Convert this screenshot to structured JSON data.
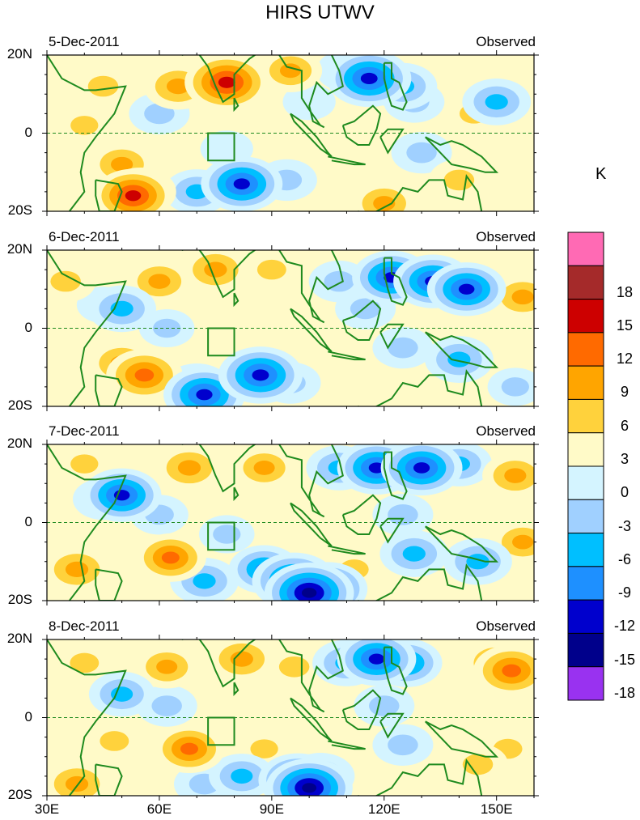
{
  "title": "HIRS UTWV",
  "unit": "K",
  "colors": {
    "land_outline": "#1e8a1e",
    "equator_line": "#1e8a1e"
  },
  "chart_data": {
    "type": "heatmap",
    "title": "HIRS UTWV",
    "xlim": [
      30,
      160
    ],
    "ylim": [
      -20,
      20
    ],
    "x_ticks": [
      {
        "value": 30,
        "label": "30E"
      },
      {
        "value": 60,
        "label": "60E"
      },
      {
        "value": 90,
        "label": "90E"
      },
      {
        "value": 120,
        "label": "120E"
      },
      {
        "value": 150,
        "label": "150E"
      }
    ],
    "y_ticks": [
      {
        "value": 20,
        "label": "20N"
      },
      {
        "value": 0,
        "label": "0"
      },
      {
        "value": -20,
        "label": "20S"
      }
    ],
    "box_region": {
      "lon": [
        73,
        80
      ],
      "lat": [
        -7,
        0
      ]
    },
    "panels": [
      {
        "date": "5-Dec-2011",
        "status": "Observed",
        "blobs": [
          {
            "lon": 45,
            "lat": 12,
            "v": 6
          },
          {
            "lon": 65,
            "lat": 12,
            "v": 9
          },
          {
            "lon": 78,
            "lat": 13,
            "v": 15
          },
          {
            "lon": 40,
            "lat": 2,
            "v": 4
          },
          {
            "lon": 50,
            "lat": -8,
            "v": 8
          },
          {
            "lon": 55,
            "lat": -15,
            "v": 10
          },
          {
            "lon": 53,
            "lat": -16,
            "v": 13
          },
          {
            "lon": 70,
            "lat": -15,
            "v": -8
          },
          {
            "lon": 82,
            "lat": -13,
            "v": -14
          },
          {
            "lon": 94,
            "lat": -12,
            "v": -6
          },
          {
            "lon": 60,
            "lat": 5,
            "v": -6
          },
          {
            "lon": 78,
            "lat": -4,
            "v": -3
          },
          {
            "lon": 100,
            "lat": 8,
            "v": -3
          },
          {
            "lon": 110,
            "lat": 16,
            "v": -6
          },
          {
            "lon": 116,
            "lat": 14,
            "v": -15
          },
          {
            "lon": 125,
            "lat": 12,
            "v": -9
          },
          {
            "lon": 128,
            "lat": 8,
            "v": -6
          },
          {
            "lon": 130,
            "lat": -5,
            "v": -6
          },
          {
            "lon": 150,
            "lat": 8,
            "v": -9
          },
          {
            "lon": 144,
            "lat": 5,
            "v": 5
          },
          {
            "lon": 140,
            "lat": -12,
            "v": 6
          },
          {
            "lon": 120,
            "lat": -18,
            "v": 8
          },
          {
            "lon": 104,
            "lat": -5,
            "v": 2
          },
          {
            "lon": 95,
            "lat": 16,
            "v": 7
          }
        ]
      },
      {
        "date": "6-Dec-2011",
        "status": "Observed",
        "blobs": [
          {
            "lon": 35,
            "lat": 12,
            "v": 6
          },
          {
            "lon": 60,
            "lat": 12,
            "v": 8
          },
          {
            "lon": 75,
            "lat": 15,
            "v": 9
          },
          {
            "lon": 90,
            "lat": 15,
            "v": 5
          },
          {
            "lon": 45,
            "lat": 6,
            "v": -3
          },
          {
            "lon": 50,
            "lat": 5,
            "v": -9
          },
          {
            "lon": 62,
            "lat": 0,
            "v": -4
          },
          {
            "lon": 50,
            "lat": -9,
            "v": 9
          },
          {
            "lon": 56,
            "lat": -12,
            "v": 12
          },
          {
            "lon": 70,
            "lat": -15,
            "v": -9
          },
          {
            "lon": 72,
            "lat": -17,
            "v": -14
          },
          {
            "lon": 87,
            "lat": -12,
            "v": -15
          },
          {
            "lon": 95,
            "lat": -14,
            "v": -6
          },
          {
            "lon": 102,
            "lat": -2,
            "v": 3
          },
          {
            "lon": 108,
            "lat": 12,
            "v": -6
          },
          {
            "lon": 122,
            "lat": 13,
            "v": -13
          },
          {
            "lon": 133,
            "lat": 12,
            "v": -13
          },
          {
            "lon": 142,
            "lat": 10,
            "v": -13
          },
          {
            "lon": 115,
            "lat": 5,
            "v": -6
          },
          {
            "lon": 125,
            "lat": -5,
            "v": -6
          },
          {
            "lon": 140,
            "lat": -8,
            "v": -9
          },
          {
            "lon": 155,
            "lat": -15,
            "v": -4
          },
          {
            "lon": 157,
            "lat": 8,
            "v": 8
          }
        ]
      },
      {
        "date": "7-Dec-2011",
        "status": "Observed",
        "blobs": [
          {
            "lon": 40,
            "lat": 15,
            "v": 4
          },
          {
            "lon": 68,
            "lat": 14,
            "v": 9
          },
          {
            "lon": 88,
            "lat": 14,
            "v": 7
          },
          {
            "lon": 45,
            "lat": 6,
            "v": -6
          },
          {
            "lon": 50,
            "lat": 7,
            "v": -13
          },
          {
            "lon": 60,
            "lat": 2,
            "v": -5
          },
          {
            "lon": 38,
            "lat": -12,
            "v": 9
          },
          {
            "lon": 63,
            "lat": -9,
            "v": 10
          },
          {
            "lon": 60,
            "lat": -10,
            "v": 7
          },
          {
            "lon": 78,
            "lat": -3,
            "v": -4
          },
          {
            "lon": 72,
            "lat": -15,
            "v": -9
          },
          {
            "lon": 88,
            "lat": -12,
            "v": -10
          },
          {
            "lon": 96,
            "lat": -15,
            "v": -15
          },
          {
            "lon": 100,
            "lat": -18,
            "v": -17
          },
          {
            "lon": 105,
            "lat": -17,
            "v": -13
          },
          {
            "lon": 108,
            "lat": 14,
            "v": -8
          },
          {
            "lon": 118,
            "lat": 14,
            "v": -13
          },
          {
            "lon": 130,
            "lat": 14,
            "v": -14
          },
          {
            "lon": 140,
            "lat": 15,
            "v": -8
          },
          {
            "lon": 125,
            "lat": 2,
            "v": -6
          },
          {
            "lon": 128,
            "lat": -8,
            "v": -9
          },
          {
            "lon": 145,
            "lat": -10,
            "v": -9
          },
          {
            "lon": 155,
            "lat": 12,
            "v": 8
          },
          {
            "lon": 157,
            "lat": -5,
            "v": 7
          },
          {
            "lon": 112,
            "lat": -12,
            "v": 5
          }
        ]
      },
      {
        "date": "8-Dec-2011",
        "status": "Observed",
        "blobs": [
          {
            "lon": 40,
            "lat": 14,
            "v": 5
          },
          {
            "lon": 62,
            "lat": 13,
            "v": 7
          },
          {
            "lon": 82,
            "lat": 15,
            "v": 9
          },
          {
            "lon": 96,
            "lat": 13,
            "v": 6
          },
          {
            "lon": 50,
            "lat": 6,
            "v": -8
          },
          {
            "lon": 62,
            "lat": 3,
            "v": -6
          },
          {
            "lon": 48,
            "lat": -6,
            "v": 5
          },
          {
            "lon": 68,
            "lat": -8,
            "v": 10
          },
          {
            "lon": 88,
            "lat": -8,
            "v": 4
          },
          {
            "lon": 38,
            "lat": -17,
            "v": 9
          },
          {
            "lon": 72,
            "lat": -17,
            "v": -6
          },
          {
            "lon": 82,
            "lat": -15,
            "v": -8
          },
          {
            "lon": 97,
            "lat": -16,
            "v": -13
          },
          {
            "lon": 100,
            "lat": -18,
            "v": -16
          },
          {
            "lon": 103,
            "lat": -15,
            "v": -9
          },
          {
            "lon": 110,
            "lat": 14,
            "v": -9
          },
          {
            "lon": 118,
            "lat": 15,
            "v": -13
          },
          {
            "lon": 126,
            "lat": 14,
            "v": -10
          },
          {
            "lon": 120,
            "lat": 3,
            "v": -6
          },
          {
            "lon": 125,
            "lat": -7,
            "v": -6
          },
          {
            "lon": 150,
            "lat": 14,
            "v": 9
          },
          {
            "lon": 154,
            "lat": 12,
            "v": 12
          },
          {
            "lon": 145,
            "lat": -12,
            "v": 6
          },
          {
            "lon": 153,
            "lat": -8,
            "v": 5
          }
        ]
      }
    ],
    "colorbar": {
      "levels": [
        {
          "color": "#ff6ab4",
          "label": ""
        },
        {
          "color": "#a52a2a",
          "label": "18"
        },
        {
          "color": "#cd0000",
          "label": "15"
        },
        {
          "color": "#ff6a00",
          "label": "12"
        },
        {
          "color": "#ffa500",
          "label": "9"
        },
        {
          "color": "#ffd23c",
          "label": "6"
        },
        {
          "color": "#fffac8",
          "label": "3"
        },
        {
          "color": "#d4f4ff",
          "label": "0"
        },
        {
          "color": "#a0d0ff",
          "label": "-3"
        },
        {
          "color": "#00bfff",
          "label": "-6"
        },
        {
          "color": "#1e90ff",
          "label": "-9"
        },
        {
          "color": "#0000cd",
          "label": "-12"
        },
        {
          "color": "#00008b",
          "label": "-15"
        },
        {
          "color": "#9932f0",
          "label": "-18"
        }
      ]
    }
  }
}
